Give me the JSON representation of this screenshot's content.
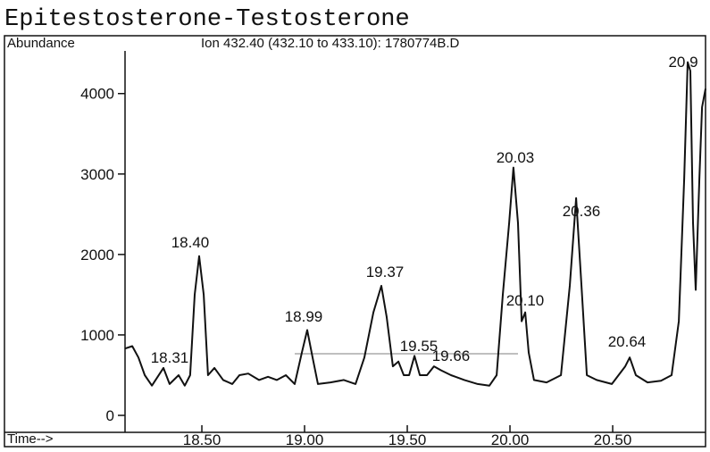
{
  "chart_data": {
    "type": "line",
    "title": "Epitestosterone-Testosterone",
    "y_label": "Abundance",
    "subtitle": "Ion 432.40 (432.10 to 433.10): 1780774B.D",
    "x_label": "Time-->",
    "color": "#111111",
    "x": [
      18.126,
      18.161,
      18.191,
      18.222,
      18.257,
      18.313,
      18.343,
      18.387,
      18.417,
      18.443,
      18.465,
      18.487,
      18.509,
      18.53,
      18.561,
      18.604,
      18.648,
      18.683,
      18.726,
      18.778,
      18.822,
      18.865,
      18.909,
      18.952,
      18.987,
      19.013,
      19.039,
      19.065,
      19.126,
      19.191,
      19.248,
      19.291,
      19.335,
      19.374,
      19.4,
      19.43,
      19.457,
      19.483,
      19.509,
      19.535,
      19.561,
      19.596,
      19.63,
      19.665,
      19.713,
      19.778,
      19.843,
      19.9,
      19.935,
      19.965,
      19.996,
      20.017,
      20.039,
      20.057,
      20.074,
      20.091,
      20.117,
      20.178,
      20.248,
      20.291,
      20.322,
      20.348,
      20.374,
      20.422,
      20.496,
      20.561,
      20.583,
      20.613,
      20.67,
      20.735,
      20.787,
      20.822,
      20.848,
      20.865,
      20.878,
      20.891,
      20.904,
      20.922,
      20.935,
      20.952
    ],
    "values": [
      830,
      860,
      720,
      500,
      370,
      590,
      390,
      500,
      370,
      500,
      1500,
      1980,
      1500,
      500,
      590,
      440,
      390,
      500,
      520,
      440,
      480,
      440,
      500,
      390,
      780,
      1060,
      720,
      390,
      410,
      440,
      390,
      720,
      1280,
      1610,
      1220,
      610,
      670,
      500,
      500,
      740,
      500,
      500,
      610,
      560,
      500,
      440,
      390,
      370,
      500,
      1500,
      2390,
      3080,
      2390,
      1170,
      1280,
      780,
      440,
      410,
      500,
      1610,
      2700,
      1610,
      500,
      440,
      390,
      610,
      720,
      500,
      410,
      430,
      500,
      1170,
      2940,
      4390,
      4280,
      2390,
      1560,
      2940,
      3830,
      4060
    ],
    "peak_labels": [
      "18.31",
      "18.40",
      "18.99",
      "19.37",
      "19.55",
      "19.66",
      "20.03",
      "20.10",
      "20.36",
      "20.64",
      "20.9"
    ],
    "xlim": [
      18.126,
      20.952
    ],
    "ylim": [
      0,
      4530
    ],
    "xticks": [
      {
        "value": 18.5,
        "label": "18.50"
      },
      {
        "value": 19,
        "label": "19.00"
      },
      {
        "value": 19.5,
        "label": "19.50"
      },
      {
        "value": 20,
        "label": "20.00"
      },
      {
        "value": 20.5,
        "label": "20.50"
      }
    ],
    "yticks": [
      0,
      1000,
      2000,
      3000,
      4000
    ]
  }
}
